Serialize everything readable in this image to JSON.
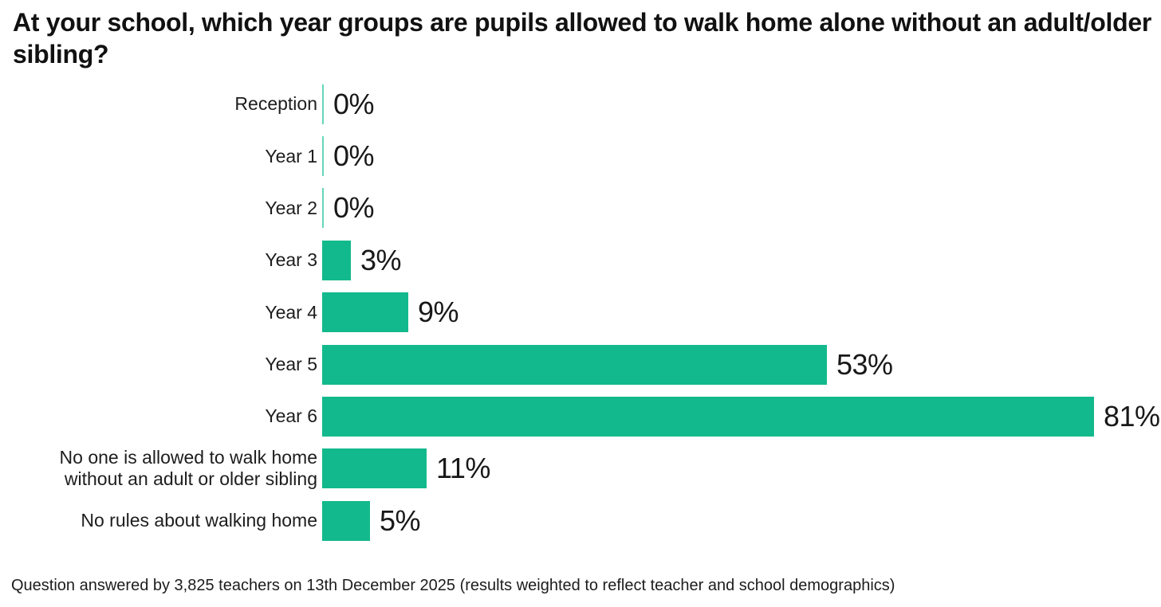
{
  "title": "At your school, which year groups are pupils allowed to walk home alone without an adult/older sibling?",
  "footer": "Question answered by 3,825 teachers on 13th December 2025 (results weighted to reflect teacher and school demographics)",
  "colors": {
    "bar": "#12B98C",
    "zero_tick": "#66D6B8",
    "text": "#1A1A1A",
    "background": "#FFFFFF"
  },
  "chart_data": {
    "type": "bar",
    "orientation": "horizontal",
    "title": "At your school, which year groups are pupils allowed to walk home alone without an adult/older sibling?",
    "categories": [
      "Reception",
      "Year 1",
      "Year 2",
      "Year 3",
      "Year 4",
      "Year 5",
      "Year 6",
      "No one is allowed to walk home without an adult or older sibling",
      "No rules about walking home"
    ],
    "values": [
      0,
      0,
      0,
      3,
      9,
      53,
      81,
      11,
      5
    ],
    "value_labels": [
      "0%",
      "0%",
      "0%",
      "3%",
      "9%",
      "53%",
      "81%",
      "11%",
      "5%"
    ],
    "unit": "%",
    "xlim": [
      0,
      88
    ],
    "grid": false,
    "legend": false,
    "value_labels_position": "end-of-bar",
    "annotation": "Question answered by 3,825 teachers on 13th December 2025 (results weighted to reflect teacher and school demographics)"
  }
}
